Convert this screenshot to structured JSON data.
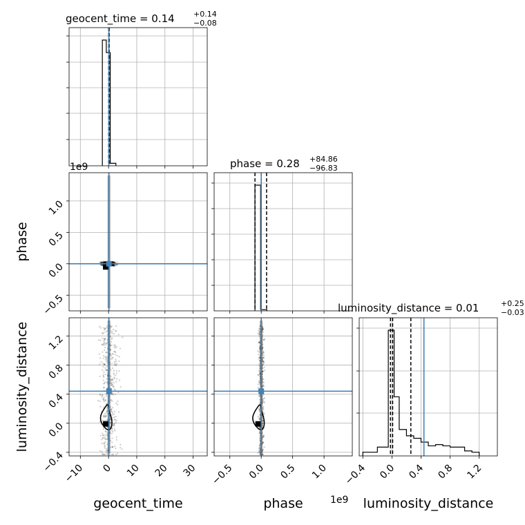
{
  "chart_data": [
    {
      "type": "histogram",
      "panel": "geocent_time",
      "title": "geocent_time = 0.14",
      "title_sup": "+0.14",
      "title_sub": "−0.08",
      "xlim": [
        -14,
        35
      ],
      "bins": {
        "edges": [
          -2.2,
          -0.8,
          0.6,
          2.6
        ],
        "heights": [
          1.0,
          0.9,
          0.02
        ]
      },
      "quantiles": [
        0.06,
        0.14,
        0.28
      ],
      "truth": 0.14
    },
    {
      "type": "histogram",
      "panel": "phase",
      "title": "phase = 0.28",
      "title_sup": "+84.86",
      "title_sub": "−96.83",
      "xlim": [
        -0.75,
        1.45
      ],
      "xlim_note": "x1e9",
      "bins": {
        "edges": [
          -0.1,
          -0.01,
          0.09
        ],
        "heights": [
          1.0,
          0.01
        ]
      },
      "quantiles": [
        -0.1,
        0.0,
        0.085
      ],
      "truth": 0.0
    },
    {
      "type": "histogram",
      "panel": "luminosity_distance",
      "title": "luminosity_distance = 0.01",
      "title_sup": "+0.25",
      "title_sub": "−0.03",
      "xlim": [
        -0.45,
        1.45
      ],
      "bins": {
        "edges": [
          -0.4,
          -0.2,
          -0.05,
          0.03,
          0.1,
          0.2,
          0.3,
          0.4,
          0.5,
          0.6,
          0.7,
          0.8,
          0.9,
          1.0,
          1.1,
          1.2
        ],
        "heights": [
          0.03,
          0.07,
          1.0,
          0.47,
          0.21,
          0.16,
          0.14,
          0.11,
          0.08,
          0.09,
          0.08,
          0.07,
          0.07,
          0.04,
          0.03
        ]
      },
      "quantiles": [
        -0.02,
        0.01,
        0.26
      ],
      "truth": 0.44,
      "ticks": {
        "values": [
          -0.4,
          0.0,
          0.4,
          0.8,
          1.2
        ],
        "labels": [
          "−0.4",
          "0.0",
          "0.4",
          "0.8",
          "1.2"
        ]
      }
    },
    {
      "type": "scatter",
      "panel": "geocent_time vs phase",
      "xlim": [
        -14,
        35
      ],
      "ylim": [
        -0.75,
        1.45
      ],
      "ylim_note": "x1e9",
      "yticks": {
        "values": [
          -0.5,
          0.0,
          0.5,
          1.0
        ],
        "labels": [
          "−0.5",
          "0.0",
          "0.5",
          "1.0"
        ]
      },
      "truth": [
        0.14,
        0.0
      ],
      "marker": [
        -1.0,
        -0.05
      ]
    },
    {
      "type": "scatter",
      "panel": "geocent_time vs luminosity_distance",
      "xlim": [
        -14,
        35
      ],
      "ylim": [
        -0.45,
        1.45
      ],
      "xticks": {
        "values": [
          -10,
          0,
          10,
          20,
          30
        ],
        "labels": [
          "−10",
          "0",
          "10",
          "20",
          "30"
        ]
      },
      "yticks": {
        "values": [
          -0.4,
          0.0,
          0.4,
          0.8,
          1.2
        ],
        "labels": [
          "−0.4",
          "0.0",
          "0.4",
          "0.8",
          "1.2"
        ]
      },
      "truth": [
        0.14,
        0.44
      ],
      "marker": [
        -1.0,
        -0.01
      ]
    },
    {
      "type": "scatter",
      "panel": "phase vs luminosity_distance",
      "xlim": [
        -0.75,
        1.45
      ],
      "ylim": [
        -0.45,
        1.45
      ],
      "xticks": {
        "values": [
          -0.5,
          0.0,
          0.5,
          1.0
        ],
        "labels": [
          "−0.5",
          "0.0",
          "0.5",
          "1.0"
        ]
      },
      "truth": [
        0.0,
        0.44
      ],
      "marker": [
        -0.05,
        -0.01
      ]
    }
  ],
  "labels": {
    "x_geocent_time": "geocent_time",
    "x_phase": "phase",
    "x_luminosity_distance": "luminosity_distance",
    "y_phase": "phase",
    "y_luminosity_distance": "luminosity_distance",
    "offset_top": "1e9",
    "offset_bottom": "1e9"
  },
  "colors": {
    "truth": "#4682b4",
    "hist": "#000000",
    "grid": "#b0b0b0",
    "samples": "#000000"
  }
}
